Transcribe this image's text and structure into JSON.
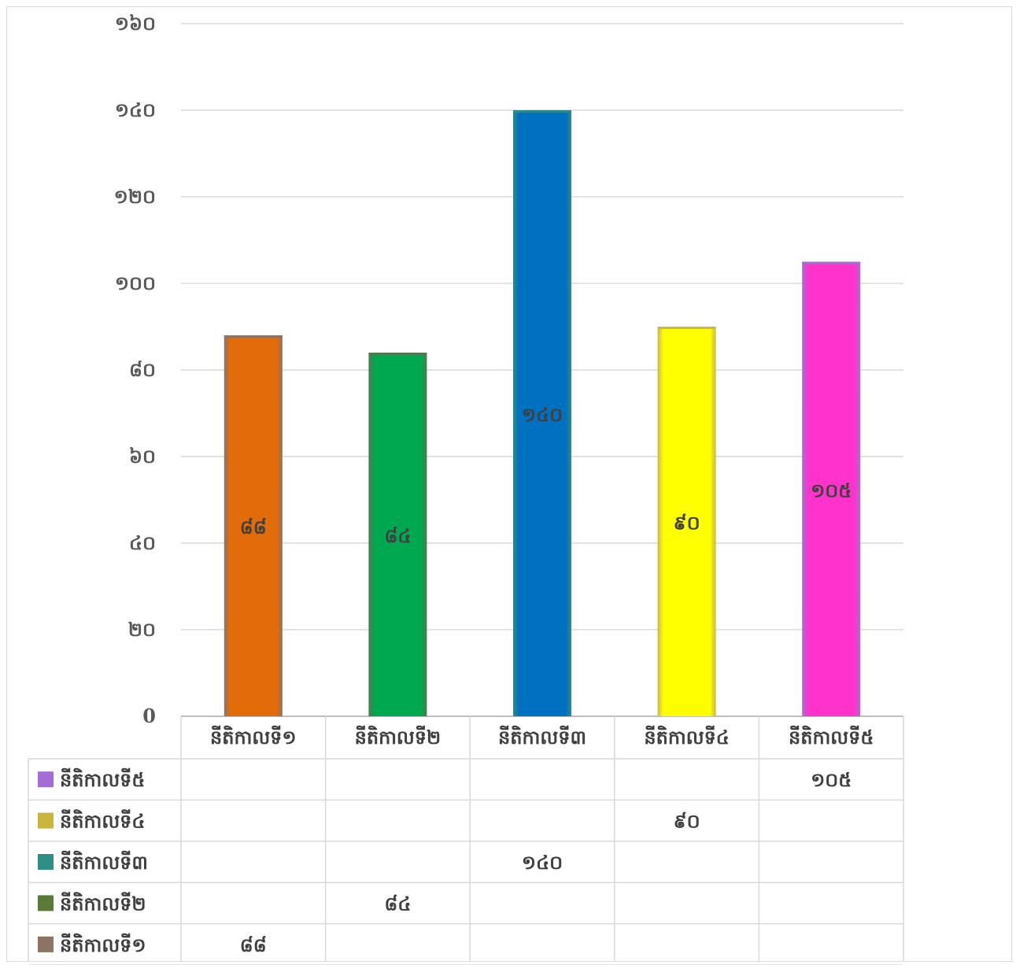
{
  "chart_data": {
    "type": "bar",
    "categories": [
      "នីតិកាលទី១",
      "នីតិកាលទី២",
      "នីតិកាលទី៣",
      "នីតិកាលទី៤",
      "នីតិកាលទី៥"
    ],
    "values": [
      88,
      84,
      140,
      90,
      105
    ],
    "value_labels": [
      "៨៨",
      "៨៤",
      "១៤០",
      "៩០",
      "១០៥"
    ],
    "colors": [
      "#e36c0a",
      "#00a84f",
      "#0070c0",
      "#ffff00",
      "#ff33cc"
    ],
    "edge_colors": [
      "#8c7364",
      "#4f7a4f",
      "#2d8a8a",
      "#c8b84a",
      "#a070d0"
    ],
    "ylim": [
      0,
      160
    ],
    "yticks": [
      0,
      20,
      40,
      60,
      80,
      100,
      120,
      140,
      160
    ],
    "ytick_labels": [
      "0",
      "២០",
      "៤០",
      "៦០",
      "៨០",
      "១០០",
      "១២០",
      "១៤០",
      "១៦០"
    ],
    "grid": true,
    "title": "",
    "xlabel": "",
    "ylabel": "",
    "data_table": {
      "rows": [
        {
          "name": "នីតិកាលទី៥",
          "swatch": "#a56bd6",
          "cells": [
            "",
            "",
            "",
            "",
            "១០៥"
          ]
        },
        {
          "name": "នីតិកាលទី៤",
          "swatch": "#c9b43c",
          "cells": [
            "",
            "",
            "",
            "៩០",
            ""
          ]
        },
        {
          "name": "នីតិកាលទី៣",
          "swatch": "#2f8e86",
          "cells": [
            "",
            "",
            "១៤០",
            "",
            ""
          ]
        },
        {
          "name": "នីតិកាលទី២",
          "swatch": "#5a7a3a",
          "cells": [
            "",
            "៨៤",
            "",
            "",
            ""
          ]
        },
        {
          "name": "នីតិកាលទី១",
          "swatch": "#8c7364",
          "cells": [
            "៨៨",
            "",
            "",
            "",
            ""
          ]
        }
      ]
    }
  }
}
